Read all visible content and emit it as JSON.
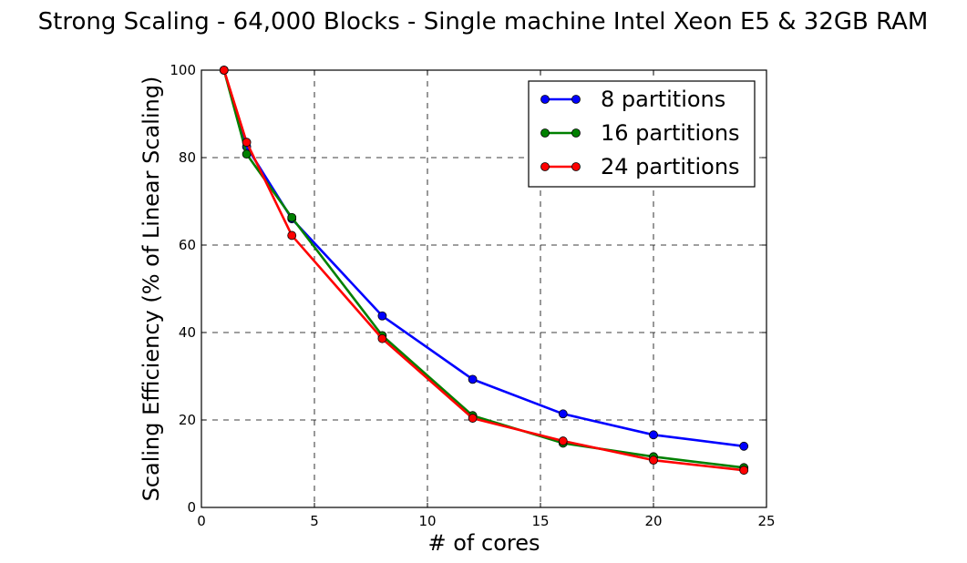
{
  "chart_data": {
    "type": "line",
    "title": "Strong Scaling - 64,000 Blocks - Single machine Intel Xeon E5 & 32GB RAM",
    "xlabel": "# of cores",
    "ylabel": "Scaling Efficiency (% of Linear Scaling)",
    "xlim": [
      0,
      25
    ],
    "ylim": [
      0,
      100
    ],
    "xticks": [
      0,
      5,
      10,
      15,
      20,
      25
    ],
    "yticks": [
      0,
      20,
      40,
      60,
      80,
      100
    ],
    "grid": true,
    "legend_position": "top-right",
    "x": [
      1,
      2,
      4,
      8,
      12,
      16,
      20,
      24
    ],
    "series": [
      {
        "name": "8 partitions",
        "color": "#0000ff",
        "values": [
          100,
          82.5,
          66,
          43.8,
          29.3,
          21.4,
          16.6,
          14.0
        ]
      },
      {
        "name": "16 partitions",
        "color": "#008000",
        "values": [
          100,
          80.8,
          66.3,
          39.3,
          21.0,
          14.7,
          11.6,
          9.1
        ]
      },
      {
        "name": "24 partitions",
        "color": "#ff0000",
        "values": [
          100,
          83.5,
          62.2,
          38.6,
          20.4,
          15.2,
          10.8,
          8.5
        ]
      }
    ]
  }
}
